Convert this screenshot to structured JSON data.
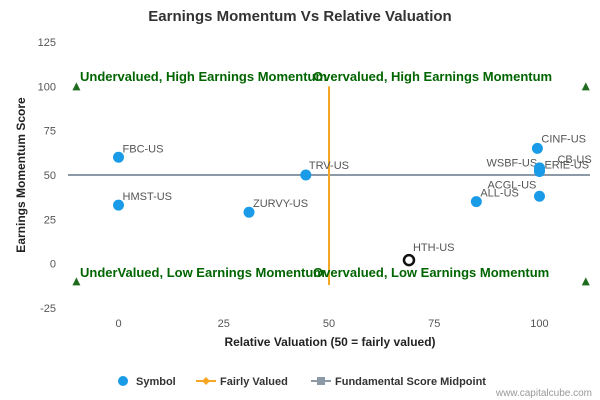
{
  "chart_data": {
    "type": "scatter",
    "title": "Earnings Momentum Vs Relative Valuation",
    "xlabel": "Relative Valuation (50 = fairly valued)",
    "ylabel": "Earnings Momentum Score",
    "xlim": [
      -12,
      112
    ],
    "ylim": [
      -25,
      125
    ],
    "xticks": [
      0,
      25,
      50,
      75,
      100
    ],
    "yticks": [
      -25,
      0,
      25,
      50,
      75,
      100,
      125
    ],
    "grid": false,
    "legend_position": "bottom",
    "series": [
      {
        "name": "Symbol",
        "color": "#1a9be8",
        "points": [
          {
            "label": "FBC-US",
            "x": 0,
            "y": 60
          },
          {
            "label": "HMST-US",
            "x": 0,
            "y": 33
          },
          {
            "label": "ZURVY-US",
            "x": 31,
            "y": 29
          },
          {
            "label": "TRV-US",
            "x": 44.5,
            "y": 50
          },
          {
            "label": "ALL-US",
            "x": 85,
            "y": 35
          },
          {
            "label": "ACGL-US",
            "x": 100,
            "y": 38
          },
          {
            "label": "CINF-US",
            "x": 99.5,
            "y": 65
          },
          {
            "label": "WSBF-US",
            "x": 100,
            "y": 53
          },
          {
            "label": "ERIE-US",
            "x": 100,
            "y": 52
          },
          {
            "label": "CB-US",
            "x": 100,
            "y": 54
          }
        ],
        "highlight": {
          "label": "HTH-US",
          "x": 69,
          "y": 2
        }
      },
      {
        "name": "Fairly Valued",
        "color": "#f5a623",
        "line": {
          "x": 50,
          "y_from": -12,
          "y_to": 100
        }
      },
      {
        "name": "Fundamental Score Midpoint",
        "color": "#8c9aa8",
        "line": {
          "y": 50,
          "x_from": -12,
          "x_to": 112
        }
      }
    ],
    "quadrant_labels": {
      "top_left": "Undervalued, High Earnings Momentum",
      "top_right": "Overvalued, High Earnings Momentum",
      "bottom_left": "UnderValued, Low Earnings Momentum",
      "bottom_right": "Overvalued, Low Earnings Momentum"
    },
    "quadrant_markers": [
      {
        "x": -10,
        "y": 100
      },
      {
        "x": 111,
        "y": 100
      },
      {
        "x": -10,
        "y": -10
      },
      {
        "x": 111,
        "y": -10
      }
    ],
    "marker_color": "#1e6b1e",
    "credit": "www.capitalcube.com"
  }
}
